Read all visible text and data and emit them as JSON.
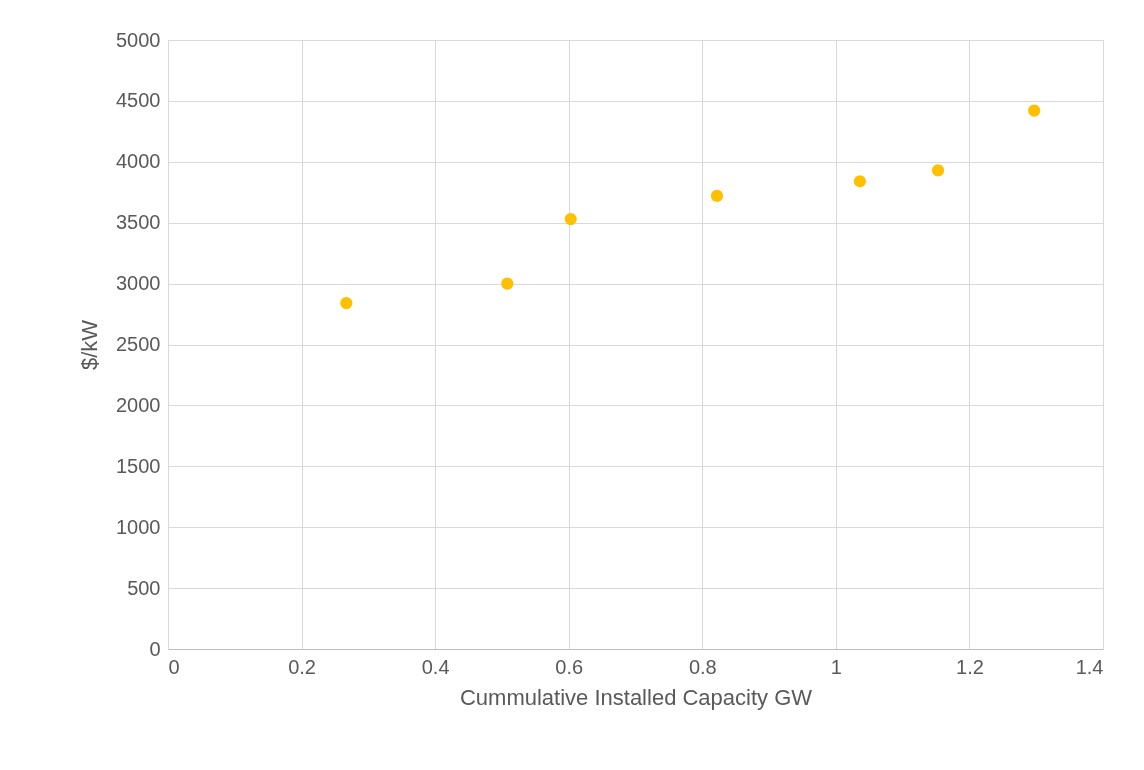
{
  "chart_data": {
    "type": "scatter",
    "xlabel": "Cummulative Installed Capacity GW",
    "ylabel": "$/kW",
    "x": [
      0.267,
      0.508,
      0.603,
      0.822,
      1.036,
      1.153,
      1.297
    ],
    "series": [
      {
        "color": "#ffc000",
        "values": [
          2840,
          3000,
          3530,
          3720,
          3840,
          3930,
          4420
        ]
      }
    ],
    "xlim": [
      0,
      1.4
    ],
    "xticks": [
      0,
      0.2,
      0.4,
      0.6,
      0.8,
      1,
      1.2,
      1.4
    ],
    "ylim": [
      0,
      5000
    ],
    "yticks": [
      0,
      500,
      1000,
      1500,
      2000,
      2500,
      3000,
      3500,
      4000,
      4500,
      5000
    ],
    "grid": true,
    "marker": "circle"
  }
}
